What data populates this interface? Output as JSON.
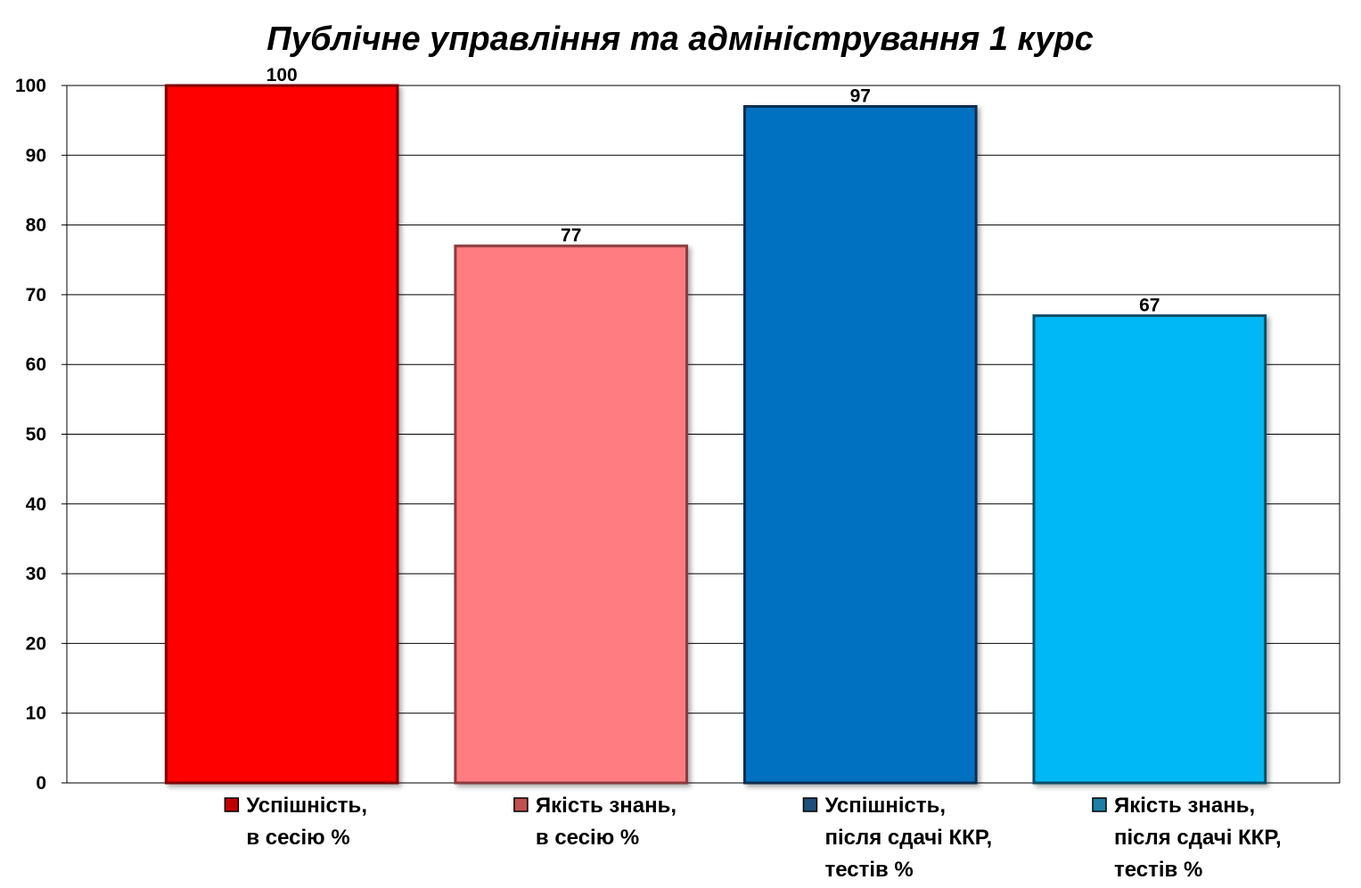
{
  "chart_data": {
    "type": "bar",
    "title": "Публічне управління та адміністрування 1 курс",
    "ylim": [
      0,
      100
    ],
    "yticks": [
      0,
      10,
      20,
      30,
      40,
      50,
      60,
      70,
      80,
      90,
      100
    ],
    "grid": true,
    "legend_position": "bottom",
    "categories": [
      [
        "Успішність,",
        "в сесію %"
      ],
      [
        "Якість знань,",
        "в сесію %"
      ],
      [
        "Успішність,",
        "після сдачі ККР,",
        "тестів %"
      ],
      [
        "Якість знань,",
        "після сдачі ККР,",
        "тестів %"
      ]
    ],
    "values": [
      100,
      77,
      97,
      67
    ],
    "data_labels": [
      "100",
      "77",
      "97",
      "67"
    ],
    "colors": [
      "#ff0000",
      "#ff7c80",
      "#0070c0",
      "#00b8f5"
    ],
    "legend_colors": [
      "#c00000",
      "#c0504d",
      "#1f4e79",
      "#1d7fa6"
    ],
    "border_colors": [
      "#7f0000",
      "#8a3a3c",
      "#0b2f4f",
      "#0f4d66"
    ]
  }
}
